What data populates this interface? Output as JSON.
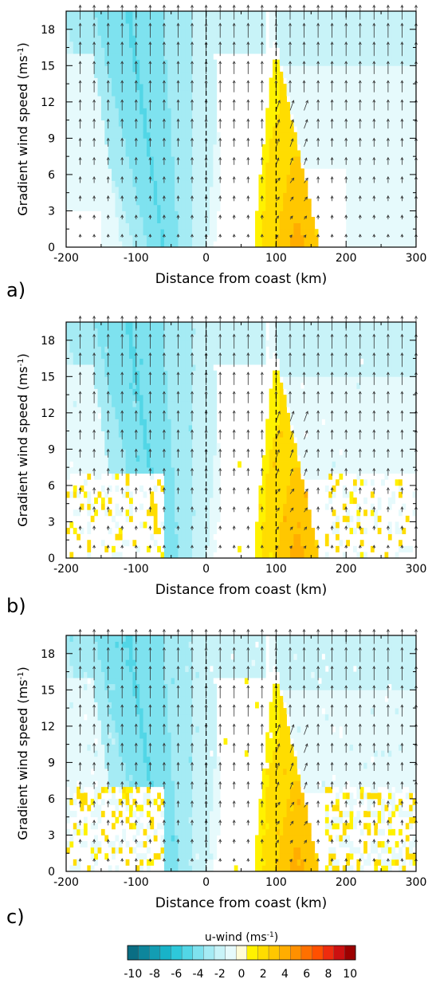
{
  "chart_data": {
    "type": "heatmap",
    "panels": [
      {
        "label": "a)",
        "xlabel": "Distance from coast (km)",
        "ylabel_main": "Gradient wind speed (ms",
        "ylabel_sup": "-1",
        "ylabel_close": ")",
        "noise": 0.0
      },
      {
        "label": "b)",
        "xlabel": "Distance from coast (km)",
        "ylabel_main": "Gradient wind speed (ms",
        "ylabel_sup": "-1",
        "ylabel_close": ")",
        "noise": 0.35
      },
      {
        "label": "c)",
        "xlabel": "Distance from coast (km)",
        "ylabel_main": "Gradient wind speed (ms",
        "ylabel_sup": "-1",
        "ylabel_close": ")",
        "noise": 0.55
      }
    ],
    "xlim": [
      -200,
      300
    ],
    "ylim": [
      0,
      19.5
    ],
    "x_ticks": [
      -200,
      -100,
      0,
      100,
      200,
      300
    ],
    "x_tick_labels": [
      "-200",
      "-100",
      "0",
      "100",
      "200",
      "300"
    ],
    "y_ticks": [
      0,
      3,
      6,
      9,
      12,
      15,
      18
    ],
    "y_tick_labels": [
      "0",
      "3",
      "6",
      "9",
      "12",
      "15",
      "18"
    ],
    "dashed_lines_x": [
      0,
      100
    ],
    "colorbar": {
      "title": "u-wind  (ms",
      "title_sup": "-1",
      "title_close": ")",
      "levels": [
        -10,
        -9,
        -8,
        -7,
        -6,
        -5,
        -4,
        -3,
        -2,
        -1,
        0,
        1,
        2,
        3,
        4,
        5,
        6,
        7,
        8,
        9,
        10
      ],
      "tick_labels": [
        "-10",
        "-8",
        "-6",
        "-4",
        "-2",
        "0",
        "2",
        "4",
        "6",
        "8",
        "10"
      ],
      "colors": [
        "#0a6e84",
        "#0e869c",
        "#139db3",
        "#18b3c8",
        "#2ec8da",
        "#52d6e6",
        "#7ee2ef",
        "#a5ebf4",
        "#c8f3f8",
        "#e6fafc",
        "#fffcd8",
        "#fff200",
        "#ffdd00",
        "#ffc700",
        "#ffad00",
        "#ff9000",
        "#ff7000",
        "#ff5000",
        "#ee2c0e",
        "#cc1010",
        "#9c0000"
      ]
    },
    "field_description": {
      "onshore_min": -4,
      "shore_band_center_x": -75,
      "offshore_min": -2,
      "positive_core_max": 4,
      "positive_core_x": 130,
      "arrows": "northward wind vectors"
    }
  }
}
